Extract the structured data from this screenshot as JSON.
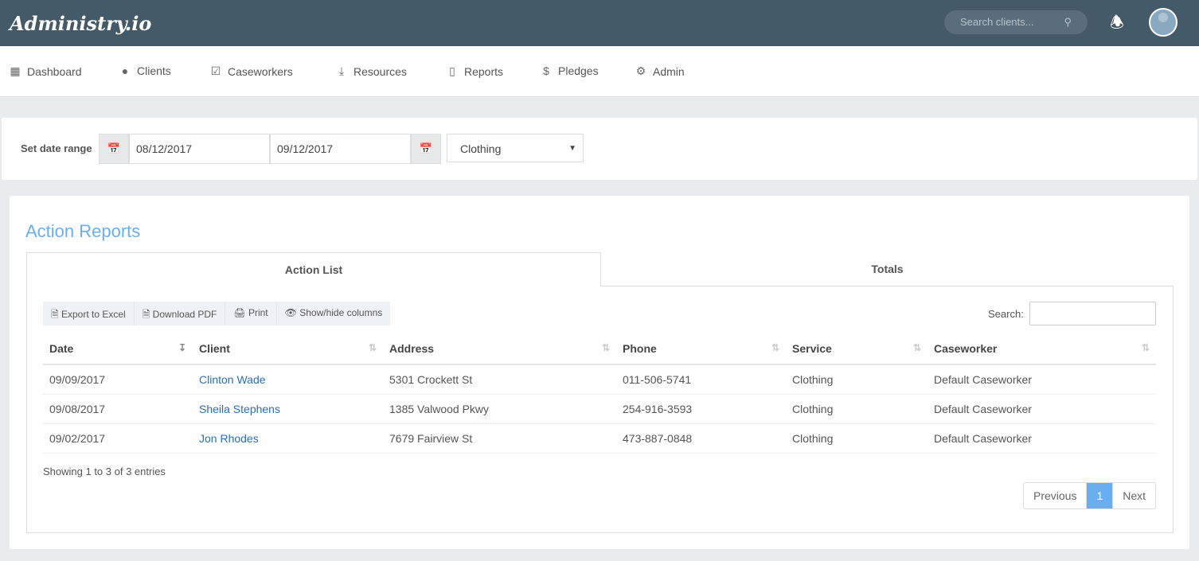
{
  "app": {
    "logo": "Administry.io",
    "search_placeholder": "Search clients...",
    "accent": "#6aaef0"
  },
  "nav": [
    {
      "label": "Dashboard",
      "icon": "dashboard-icon"
    },
    {
      "label": "Clients",
      "icon": "user-icon"
    },
    {
      "label": "Caseworkers",
      "icon": "calendar-check-icon"
    },
    {
      "label": "Resources",
      "icon": "download-icon"
    },
    {
      "label": "Reports",
      "icon": "document-icon"
    },
    {
      "label": "Pledges",
      "icon": "dollar-icon"
    },
    {
      "label": "Admin",
      "icon": "gear-icon"
    }
  ],
  "filter": {
    "label": "Set date range",
    "from": "08/12/2017",
    "to": "09/12/2017",
    "service": "Clothing"
  },
  "report": {
    "title": "Action Reports",
    "tabs": [
      "Action List",
      "Totals"
    ],
    "buttons": [
      "Export to Excel",
      "Download PDF",
      "Print",
      "Show/hide columns"
    ],
    "search_label": "Search:",
    "columns": [
      "Date",
      "Client",
      "Address",
      "Phone",
      "Service",
      "Caseworker"
    ],
    "rows": [
      [
        "09/09/2017",
        "Clinton Wade",
        "5301 Crockett St",
        "011-506-5741",
        "Clothing",
        "Default Caseworker"
      ],
      [
        "09/08/2017",
        "Sheila Stephens",
        "1385 Valwood Pkwy",
        "254-916-3593",
        "Clothing",
        "Default Caseworker"
      ],
      [
        "09/02/2017",
        "Jon Rhodes",
        "7679 Fairview St",
        "473-887-0848",
        "Clothing",
        "Default Caseworker"
      ]
    ],
    "info": "Showing 1 to 3 of 3 entries",
    "pager": {
      "previous": "Previous",
      "page": "1",
      "next": "Next"
    }
  }
}
